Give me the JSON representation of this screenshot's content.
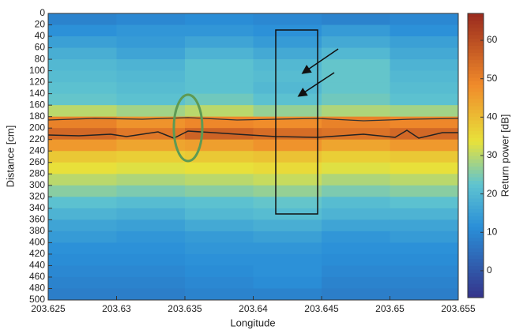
{
  "chart_data": {
    "type": "heatmap",
    "xlabel": "Longitude",
    "ylabel": "Distance [cm]",
    "colorbar_label": "Return power [dB]",
    "xlim": [
      203.625,
      203.655
    ],
    "xticks": [
      203.625,
      203.63,
      203.635,
      203.64,
      203.645,
      203.65,
      203.655
    ],
    "ylim": [
      500,
      0
    ],
    "yticks": [
      0,
      20,
      40,
      60,
      80,
      100,
      120,
      140,
      160,
      180,
      200,
      220,
      240,
      260,
      280,
      300,
      320,
      340,
      360,
      380,
      400,
      420,
      440,
      460,
      480,
      500
    ],
    "clim": [
      -7,
      67
    ],
    "cticks": [
      0,
      10,
      20,
      30,
      40,
      50,
      60
    ],
    "colormap": "jet",
    "z": [
      [
        9,
        10,
        11,
        10,
        9,
        10
      ],
      [
        12,
        13,
        13,
        12,
        14,
        12
      ],
      [
        15,
        14,
        16,
        14,
        17,
        15
      ],
      [
        18,
        16,
        19,
        17,
        20,
        17
      ],
      [
        20,
        19,
        22,
        20,
        23,
        19
      ],
      [
        21,
        20,
        22,
        21,
        23,
        20
      ],
      [
        22,
        21,
        22,
        20,
        23,
        21
      ],
      [
        23,
        22,
        24,
        22,
        24,
        22
      ],
      [
        30,
        28,
        30,
        27,
        29,
        28
      ],
      [
        50,
        47,
        49,
        48,
        50,
        49
      ],
      [
        55,
        52,
        56,
        54,
        53,
        55
      ],
      [
        46,
        44,
        45,
        47,
        44,
        46
      ],
      [
        38,
        37,
        38,
        39,
        37,
        38
      ],
      [
        34,
        33,
        34,
        35,
        33,
        34
      ],
      [
        30,
        29,
        30,
        31,
        29,
        30
      ],
      [
        26,
        25,
        26,
        27,
        25,
        26
      ],
      [
        22,
        21,
        22,
        23,
        21,
        22
      ],
      [
        19,
        18,
        20,
        21,
        19,
        19
      ],
      [
        16,
        15,
        17,
        18,
        16,
        16
      ],
      [
        14,
        13,
        14,
        15,
        13,
        14
      ],
      [
        12,
        12,
        13,
        13,
        12,
        12
      ],
      [
        11,
        11,
        12,
        12,
        11,
        11
      ],
      [
        10,
        10,
        11,
        12,
        10,
        10
      ],
      [
        9,
        9,
        10,
        11,
        9,
        9
      ],
      [
        8,
        8,
        9,
        9,
        8,
        8
      ]
    ]
  }
}
